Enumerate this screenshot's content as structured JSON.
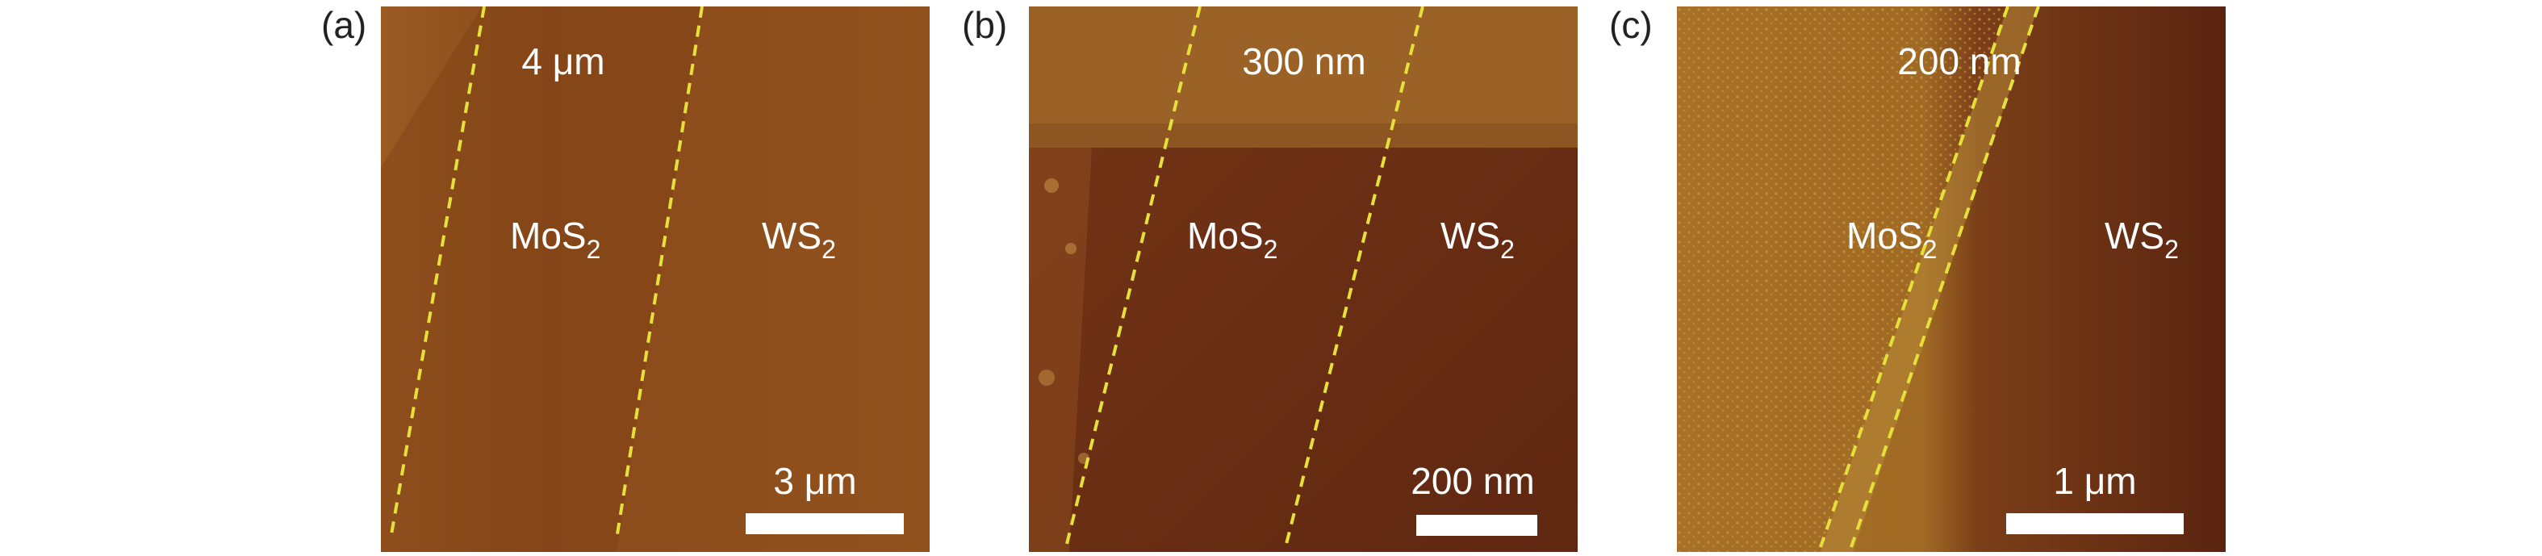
{
  "panels": [
    {
      "id": "a",
      "label": "(a)",
      "width_text": "4 μm",
      "left_material": "MoS",
      "right_material": "WS",
      "subscript": "2",
      "scale_bar": "3 μm"
    },
    {
      "id": "b",
      "label": "(b)",
      "width_text": "300 nm",
      "left_material": "MoS",
      "right_material": "WS",
      "subscript": "2",
      "scale_bar": "200 nm"
    },
    {
      "id": "c",
      "label": "(c)",
      "width_text": "200 nm",
      "left_material": "MoS",
      "right_material": "WS",
      "subscript": "2",
      "scale_bar": "1 μm"
    }
  ],
  "colors": {
    "afm_dark": "#5a2610",
    "afm_mid": "#8a4a1c",
    "afm_light": "#a76a28",
    "boundary_line": "#e6e03a",
    "annotation_text": "#ffffff",
    "scale_bar": "#ffffff"
  }
}
